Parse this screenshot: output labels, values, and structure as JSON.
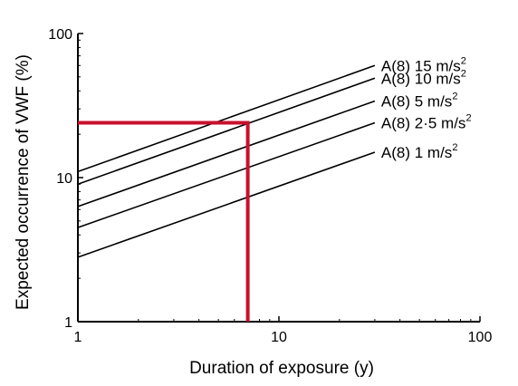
{
  "chart_data": {
    "type": "line",
    "xlabel": "Duration of exposure (y)",
    "ylabel": "Expected occurrence of VWF (%)",
    "x_scale": "log",
    "y_scale": "log",
    "xlim": [
      1,
      100
    ],
    "ylim": [
      1,
      100
    ],
    "x_ticks": [
      {
        "value": 1,
        "label": "1"
      },
      {
        "value": 10,
        "label": "10"
      },
      {
        "value": 100,
        "label": "100"
      }
    ],
    "y_ticks": [
      {
        "value": 1,
        "label": "1"
      },
      {
        "value": 10,
        "label": "10"
      },
      {
        "value": 100,
        "label": "100"
      }
    ],
    "grid": false,
    "series": [
      {
        "name": "A(8) 15 m/s",
        "unit_superscript": "2",
        "x": [
          1,
          30
        ],
        "y": [
          11,
          60
        ],
        "color": "#000000"
      },
      {
        "name": "A(8) 10 m/s",
        "unit_superscript": "2",
        "x": [
          1,
          30
        ],
        "y": [
          9,
          49
        ],
        "color": "#000000"
      },
      {
        "name": "A(8) 5 m/s",
        "unit_superscript": "2",
        "x": [
          1,
          30
        ],
        "y": [
          6.3,
          34
        ],
        "color": "#000000"
      },
      {
        "name": "A(8) 2·5 m/s",
        "unit_superscript": "2",
        "x": [
          1,
          30
        ],
        "y": [
          4.5,
          24
        ],
        "color": "#000000"
      },
      {
        "name": "A(8) 1 m/s",
        "unit_superscript": "2",
        "x": [
          1,
          30
        ],
        "y": [
          2.8,
          15
        ],
        "color": "#000000"
      }
    ],
    "highlight": {
      "x": 7,
      "y": 24,
      "color": "#c8102e"
    }
  }
}
